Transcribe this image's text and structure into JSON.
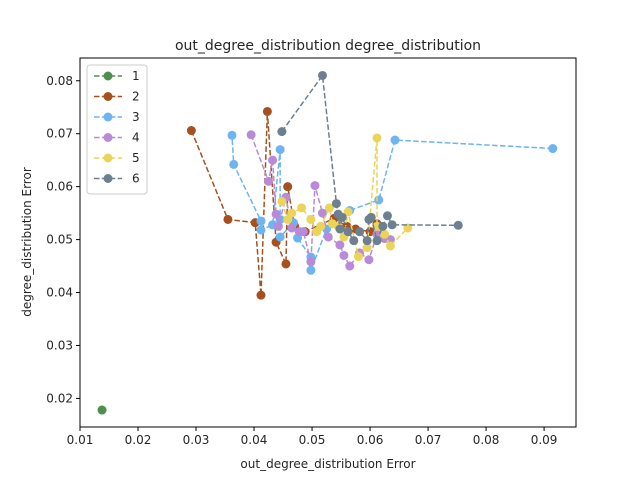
{
  "chart_data": {
    "type": "line",
    "title": "out_degree_distribution degree_distribution",
    "xlabel": "out_degree_distribution Error",
    "ylabel": "degree_distribution Error",
    "xlim": [
      0.01,
      0.0955
    ],
    "ylim": [
      0.0146,
      0.0843
    ],
    "xticks": [
      0.01,
      0.02,
      0.03,
      0.04,
      0.05,
      0.06,
      0.07,
      0.08,
      0.09
    ],
    "xtick_labels": [
      "0.01",
      "0.02",
      "0.03",
      "0.04",
      "0.05",
      "0.06",
      "0.07",
      "0.08",
      "0.09"
    ],
    "yticks": [
      0.02,
      0.03,
      0.04,
      0.05,
      0.06,
      0.07,
      0.08
    ],
    "ytick_labels": [
      "0.02",
      "0.03",
      "0.04",
      "0.05",
      "0.06",
      "0.07",
      "0.08"
    ],
    "grid": false,
    "legend_position": "top-left",
    "series": [
      {
        "name": "1",
        "color": "#4e8f4e",
        "points": [
          [
            0.0138,
            0.0178
          ]
        ]
      },
      {
        "name": "2",
        "color": "#a5501e",
        "points": [
          [
            0.0292,
            0.0706
          ],
          [
            0.0355,
            0.0538
          ],
          [
            0.0402,
            0.0532
          ],
          [
            0.0412,
            0.0395
          ],
          [
            0.0423,
            0.0742
          ],
          [
            0.0438,
            0.0495
          ],
          [
            0.0455,
            0.0454
          ],
          [
            0.0458,
            0.06
          ],
          [
            0.047,
            0.0525
          ],
          [
            0.0488,
            0.0515
          ],
          [
            0.0538,
            0.054
          ],
          [
            0.056,
            0.0525
          ],
          [
            0.0575,
            0.052
          ],
          [
            0.06,
            0.0515
          ],
          [
            0.0612,
            0.053
          ]
        ]
      },
      {
        "name": "3",
        "color": "#6cb4f2",
        "points": [
          [
            0.0915,
            0.0672
          ],
          [
            0.0643,
            0.0688
          ],
          [
            0.0615,
            0.0575
          ],
          [
            0.0565,
            0.0555
          ],
          [
            0.0525,
            0.052
          ],
          [
            0.0498,
            0.0442
          ],
          [
            0.0498,
            0.0467
          ],
          [
            0.0475,
            0.0503
          ],
          [
            0.0468,
            0.0532
          ],
          [
            0.0445,
            0.0505
          ],
          [
            0.0445,
            0.0538
          ],
          [
            0.0445,
            0.067
          ],
          [
            0.0432,
            0.0528
          ],
          [
            0.0412,
            0.0518
          ],
          [
            0.0412,
            0.0535
          ],
          [
            0.0365,
            0.0642
          ],
          [
            0.0362,
            0.0697
          ]
        ]
      },
      {
        "name": "4",
        "color": "#b98ad8",
        "points": [
          [
            0.0395,
            0.0698
          ],
          [
            0.0425,
            0.061
          ],
          [
            0.0432,
            0.065
          ],
          [
            0.0438,
            0.0548
          ],
          [
            0.0442,
            0.0525
          ],
          [
            0.0455,
            0.058
          ],
          [
            0.0465,
            0.0522
          ],
          [
            0.0478,
            0.0515
          ],
          [
            0.0485,
            0.0515
          ],
          [
            0.0498,
            0.0458
          ],
          [
            0.0505,
            0.0602
          ],
          [
            0.0518,
            0.055
          ],
          [
            0.0528,
            0.0505
          ],
          [
            0.0548,
            0.049
          ],
          [
            0.0555,
            0.047
          ],
          [
            0.0565,
            0.045
          ],
          [
            0.0582,
            0.0475
          ],
          [
            0.0598,
            0.0462
          ],
          [
            0.0612,
            0.051
          ],
          [
            0.0625,
            0.0502
          ],
          [
            0.0635,
            0.05
          ]
        ]
      },
      {
        "name": "5",
        "color": "#ebd558",
        "points": [
          [
            0.0448,
            0.0572
          ],
          [
            0.0458,
            0.0538
          ],
          [
            0.0465,
            0.055
          ],
          [
            0.0482,
            0.056
          ],
          [
            0.0498,
            0.0538
          ],
          [
            0.0508,
            0.0515
          ],
          [
            0.0515,
            0.0525
          ],
          [
            0.053,
            0.056
          ],
          [
            0.0535,
            0.053
          ],
          [
            0.0545,
            0.0525
          ],
          [
            0.0555,
            0.0505
          ],
          [
            0.0562,
            0.0552
          ],
          [
            0.058,
            0.0468
          ],
          [
            0.0595,
            0.0485
          ],
          [
            0.0612,
            0.0692
          ],
          [
            0.0612,
            0.0525
          ],
          [
            0.0625,
            0.051
          ],
          [
            0.0635,
            0.0488
          ],
          [
            0.0665,
            0.0522
          ]
        ]
      },
      {
        "name": "6",
        "color": "#6c8091",
        "points": [
          [
            0.0448,
            0.0704
          ],
          [
            0.0518,
            0.081
          ],
          [
            0.0542,
            0.0568
          ],
          [
            0.0545,
            0.0548
          ],
          [
            0.0548,
            0.052
          ],
          [
            0.0552,
            0.0542
          ],
          [
            0.0562,
            0.0515
          ],
          [
            0.0572,
            0.0498
          ],
          [
            0.0582,
            0.0515
          ],
          [
            0.0595,
            0.0498
          ],
          [
            0.0598,
            0.0538
          ],
          [
            0.0602,
            0.0542
          ],
          [
            0.0612,
            0.0498
          ],
          [
            0.0622,
            0.0525
          ],
          [
            0.063,
            0.0545
          ],
          [
            0.0638,
            0.0528
          ],
          [
            0.0752,
            0.0527
          ]
        ]
      }
    ]
  }
}
